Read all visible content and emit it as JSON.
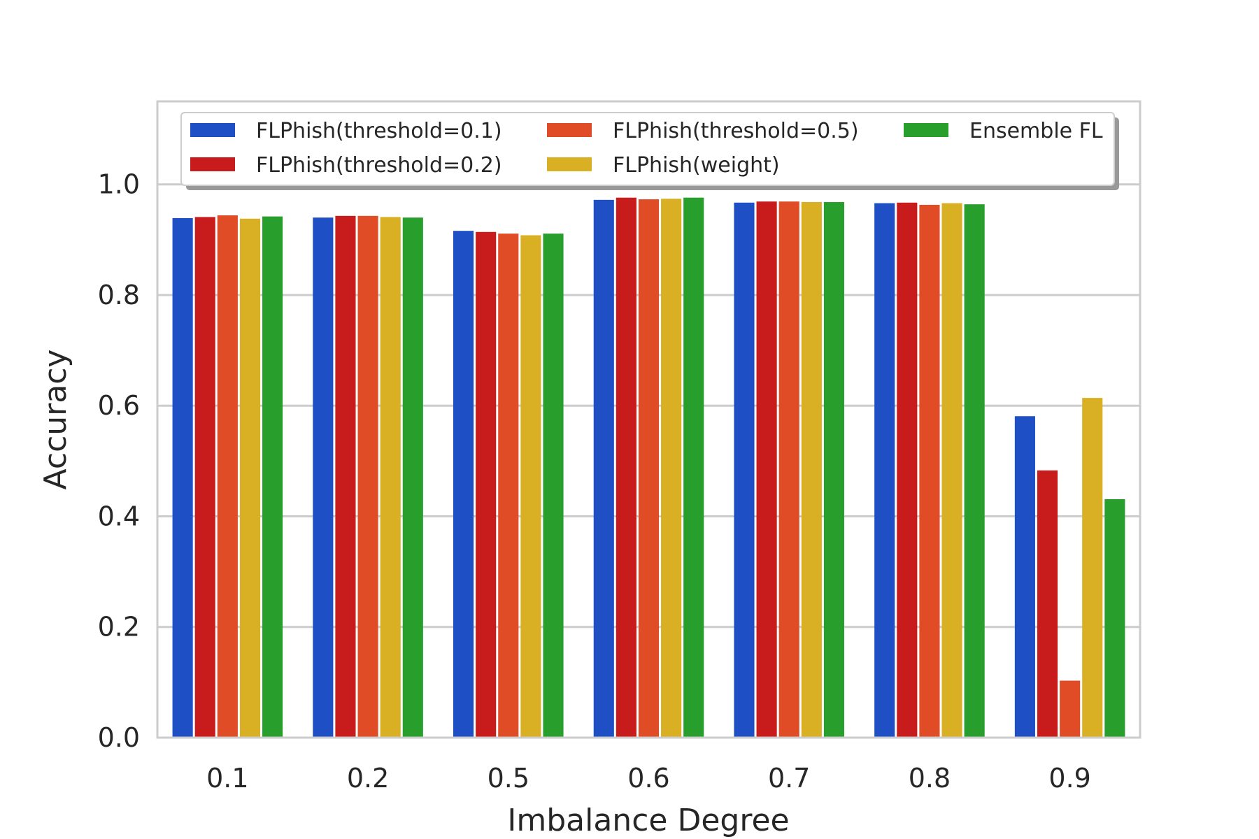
{
  "chart_data": {
    "type": "bar",
    "title": "",
    "xlabel": "Imbalance Degree",
    "ylabel": "Accuracy",
    "categories": [
      "0.1",
      "0.2",
      "0.5",
      "0.6",
      "0.7",
      "0.8",
      "0.9"
    ],
    "ylim": [
      0,
      1.15
    ],
    "yticks": [
      "0.0",
      "0.2",
      "0.4",
      "0.6",
      "0.8",
      "1.0"
    ],
    "grid": "horizontal",
    "legend_position": "top",
    "series": [
      {
        "name": "FLPhish(threshold=0.1)",
        "color": "#1f4fc4",
        "values": [
          0.939,
          0.94,
          0.916,
          0.972,
          0.967,
          0.966,
          0.581
        ]
      },
      {
        "name": "FLPhish(threshold=0.2)",
        "color": "#c81c1c",
        "values": [
          0.941,
          0.943,
          0.914,
          0.976,
          0.969,
          0.967,
          0.483
        ]
      },
      {
        "name": "FLPhish(threshold=0.5)",
        "color": "#e04c26",
        "values": [
          0.944,
          0.943,
          0.911,
          0.973,
          0.969,
          0.963,
          0.103
        ]
      },
      {
        "name": "FLPhish(weight)",
        "color": "#d9af24",
        "values": [
          0.938,
          0.941,
          0.908,
          0.974,
          0.968,
          0.966,
          0.614
        ]
      },
      {
        "name": "Ensemble FL",
        "color": "#289e2d",
        "values": [
          0.942,
          0.94,
          0.911,
          0.976,
          0.968,
          0.964,
          0.431
        ]
      }
    ]
  }
}
